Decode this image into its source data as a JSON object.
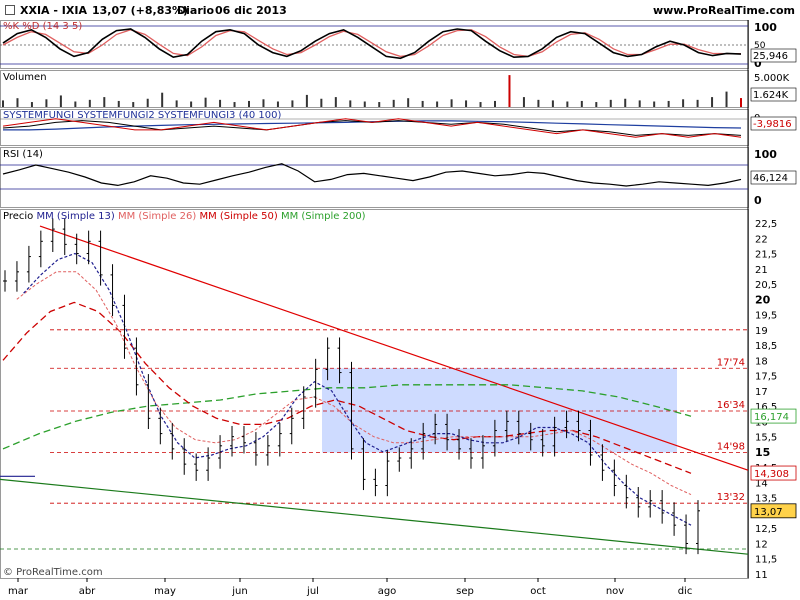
{
  "header": {
    "symbol": "XXIA - IXIA",
    "last": "13,07 (+8,83%)",
    "period": "Diario",
    "date": "06 dic 2013",
    "site": "www.ProRealTime.com"
  },
  "footer": {
    "copyright": "© ProRealTime.com"
  },
  "colors": {
    "price": "#000000",
    "mm13": "#1f1f8f",
    "mm26": "#e06060",
    "mm50": "#cc0000",
    "mm200": "#2ca02c",
    "zone": "#c6d5ff",
    "resistance": "#e00000",
    "support": "#1a7a1a"
  },
  "chart_data": [
    {
      "type": "line",
      "panel": "stochastic",
      "title": "%K %D (14 3 5)",
      "ylim": [
        0,
        100
      ],
      "tick_labels": [
        "100",
        "50",
        "0"
      ],
      "last_value_label": "25,946",
      "series": [
        {
          "name": "%K",
          "values": [
            55,
            80,
            90,
            70,
            40,
            20,
            30,
            65,
            88,
            92,
            70,
            40,
            18,
            25,
            60,
            85,
            90,
            80,
            50,
            30,
            20,
            35,
            60,
            80,
            90,
            70,
            45,
            20,
            15,
            30,
            60,
            85,
            92,
            88,
            60,
            35,
            18,
            20,
            40,
            70,
            85,
            80,
            55,
            30,
            20,
            25,
            45,
            60,
            50,
            30,
            22,
            28,
            26
          ]
        },
        {
          "name": "%D",
          "values": [
            50,
            70,
            85,
            78,
            55,
            32,
            28,
            50,
            78,
            90,
            78,
            52,
            28,
            22,
            45,
            75,
            88,
            85,
            62,
            40,
            25,
            30,
            50,
            72,
            86,
            78,
            55,
            32,
            20,
            25,
            48,
            75,
            88,
            90,
            72,
            45,
            25,
            20,
            32,
            58,
            78,
            82,
            65,
            40,
            25,
            25,
            38,
            52,
            52,
            38,
            28,
            27,
            27
          ]
        }
      ]
    },
    {
      "type": "bar",
      "panel": "volume",
      "title": "Volumen",
      "tick_labels": [
        "5.000K",
        "1.624K"
      ],
      "last_value_label": "1.624K",
      "values": [
        1200,
        1600,
        900,
        1400,
        2100,
        1000,
        1300,
        1800,
        1100,
        900,
        1500,
        2600,
        1200,
        1000,
        1700,
        1300,
        900,
        1100,
        1400,
        1000,
        1200,
        2200,
        1500,
        1800,
        1200,
        1000,
        900,
        1300,
        1600,
        1100,
        1000,
        1400,
        1200,
        900,
        1100,
        5800,
        1800,
        1300,
        1200,
        1000,
        1100,
        900,
        1300,
        1500,
        1200,
        1000,
        1100,
        1400,
        1300,
        1800,
        2800,
        1624
      ]
    },
    {
      "type": "line",
      "panel": "systemfungi",
      "title": "SYSTEMFUNGI SYSTEMFUNGI2 SYSTEMFUNGI3 (40 100)",
      "tick_labels": [
        "0"
      ],
      "last_value_label": "-3,9816",
      "series": [
        {
          "name": "SYSTEMFUNGI",
          "values": [
            -1,
            0,
            1,
            0,
            -1,
            -2,
            -2,
            -1,
            0,
            -1,
            -2,
            -1,
            0,
            1,
            0,
            1,
            0,
            -1,
            0,
            -1,
            -2,
            -3,
            -2,
            -3,
            -4,
            -3,
            -4,
            -3,
            -4
          ]
        },
        {
          "name": "SYSTEMFUNGI2",
          "values": [
            -1.5,
            -1,
            0,
            0.5,
            0,
            -1,
            -2,
            -1.5,
            -1,
            -1.5,
            -2,
            -1,
            0,
            0.5,
            0,
            0.5,
            0,
            -0.5,
            0,
            -0.5,
            -1.5,
            -2.5,
            -2,
            -2.5,
            -3.5,
            -3,
            -3.5,
            -3,
            -3.5
          ]
        },
        {
          "name": "SYSTEMFUNGI3",
          "values": [
            -2,
            -2,
            -1.8,
            -1.5,
            -1.2,
            -1,
            -0.8,
            -0.6,
            -0.5,
            -0.4,
            -0.3,
            -0.2,
            -0.1,
            0,
            0.2,
            0.3,
            0.4,
            0.4,
            0.3,
            0.2,
            0,
            -0.2,
            -0.4,
            -0.6,
            -0.8,
            -1,
            -1.2,
            -1.4,
            -1.5
          ]
        }
      ]
    },
    {
      "type": "line",
      "panel": "rsi",
      "title": "RSI (14)",
      "ylim": [
        0,
        100
      ],
      "tick_labels": [
        "100",
        "0"
      ],
      "last_value_label": "46,124",
      "series": [
        {
          "name": "RSI (14)",
          "values": [
            55,
            62,
            70,
            64,
            58,
            50,
            40,
            36,
            42,
            52,
            48,
            40,
            38,
            45,
            52,
            58,
            66,
            72,
            60,
            42,
            46,
            54,
            56,
            52,
            48,
            44,
            50,
            58,
            60,
            56,
            52,
            54,
            58,
            56,
            50,
            44,
            40,
            38,
            35,
            38,
            42,
            40,
            38,
            36,
            40,
            46
          ]
        }
      ]
    },
    {
      "type": "line",
      "panel": "price",
      "title": "Precio MM (Simple 13) MM (Simple 26) MM (Simple 50) MM (Simple 200)",
      "legend": [
        "Precio",
        "MM (Simple 13)",
        "MM (Simple 26)",
        "MM (Simple 50)",
        "MM (Simple 200)"
      ],
      "x_labels": [
        "mar",
        "abr",
        "may",
        "jun",
        "jul",
        "ago",
        "sep",
        "oct",
        "nov",
        "dic"
      ],
      "ylim": [
        11,
        22.5
      ],
      "y_ticks": [
        22.5,
        22,
        21.5,
        21,
        20.5,
        20,
        19.5,
        19,
        18.5,
        18,
        17.5,
        17,
        16.5,
        16,
        15.5,
        15,
        14.5,
        14,
        13.5,
        13,
        12.5,
        12,
        11.5,
        11
      ],
      "y_tick_labels": [
        "22,5",
        "22",
        "21,5",
        "21",
        "20,5",
        "20",
        "19,5",
        "19",
        "18,5",
        "18",
        "17,5",
        "17",
        "16,5",
        "16",
        "15,5",
        "15",
        "14,5",
        "14",
        "13,5",
        "13",
        "12,5",
        "12",
        "11,5",
        "11"
      ],
      "levels": [
        {
          "value": 19.0,
          "label": ""
        },
        {
          "value": 17.74,
          "label": "17'74"
        },
        {
          "value": 16.34,
          "label": "16'34"
        },
        {
          "value": 14.98,
          "label": "14'98"
        },
        {
          "value": 13.32,
          "label": "13'32"
        },
        {
          "value": 11.82,
          "label": ""
        }
      ],
      "value_labels": [
        {
          "value": 16.174,
          "label": "16,174",
          "color": "#2ca02c"
        },
        {
          "value": 14.308,
          "label": "14,308",
          "color": "#cc0000"
        },
        {
          "value": 13.07,
          "label": "13,07",
          "color": "#000000",
          "highlight": "#ffd24a"
        }
      ],
      "series": [
        {
          "name": "Precio",
          "values": [
            20.6,
            20.9,
            21.4,
            21.9,
            22.3,
            21.8,
            21.5,
            21.9,
            20.8,
            19.8,
            18.4,
            17.2,
            16.1,
            15.6,
            15.1,
            14.6,
            14.4,
            14.8,
            15.2,
            15.5,
            15.3,
            14.9,
            15.2,
            15.6,
            16.1,
            16.8,
            17.7,
            18.4,
            17.6,
            15.1,
            14.1,
            13.9,
            14.7,
            14.8,
            15.1,
            15.6,
            15.9,
            15.4,
            15.1,
            14.8,
            15.2,
            15.7,
            16.0,
            15.6,
            15.4,
            15.2,
            15.8,
            16.0,
            15.7,
            14.9,
            14.4,
            13.9,
            13.5,
            13.2,
            13.4,
            13.0,
            12.6,
            12.0,
            13.07
          ]
        },
        {
          "name": "MM (Simple 13)",
          "values": [
            20.2,
            20.8,
            21.3,
            21.5,
            21.2,
            20.3,
            19.0,
            17.5,
            16.2,
            15.3,
            14.8,
            14.9,
            15.1,
            15.2,
            15.5,
            16.0,
            16.8,
            17.3,
            17.0,
            16.1,
            15.3,
            15.0,
            15.2,
            15.4,
            15.6,
            15.6,
            15.4,
            15.3,
            15.3,
            15.5,
            15.8,
            15.8,
            15.6,
            15.3,
            14.6,
            14.0,
            13.5,
            13.2,
            12.9,
            12.6
          ]
        },
        {
          "name": "MM (Simple 26)",
          "values": [
            20.0,
            20.5,
            20.9,
            20.9,
            20.3,
            19.2,
            17.8,
            16.6,
            15.8,
            15.4,
            15.3,
            15.4,
            15.7,
            16.2,
            16.7,
            16.8,
            16.5,
            15.9,
            15.5,
            15.3,
            15.3,
            15.4,
            15.5,
            15.5,
            15.5,
            15.5,
            15.5,
            15.6,
            15.7,
            15.4,
            15.0,
            14.6,
            14.3,
            13.9,
            13.6
          ]
        },
        {
          "name": "MM (Simple 50)",
          "values": [
            18.0,
            18.9,
            19.6,
            19.9,
            19.6,
            18.9,
            17.9,
            17.1,
            16.5,
            16.1,
            15.9,
            15.9,
            16.1,
            16.5,
            16.7,
            16.5,
            16.1,
            15.7,
            15.5,
            15.4,
            15.5,
            15.5,
            15.6,
            15.7,
            15.7,
            15.5,
            15.2,
            14.9,
            14.6,
            14.3
          ]
        },
        {
          "name": "MM (Simple 200)",
          "values": [
            15.1,
            15.6,
            16.0,
            16.3,
            16.5,
            16.6,
            16.7,
            16.9,
            17.0,
            17.1,
            17.1,
            17.2,
            17.2,
            17.2,
            17.2,
            17.1,
            17.0,
            16.8,
            16.5,
            16.17
          ]
        }
      ]
    }
  ]
}
